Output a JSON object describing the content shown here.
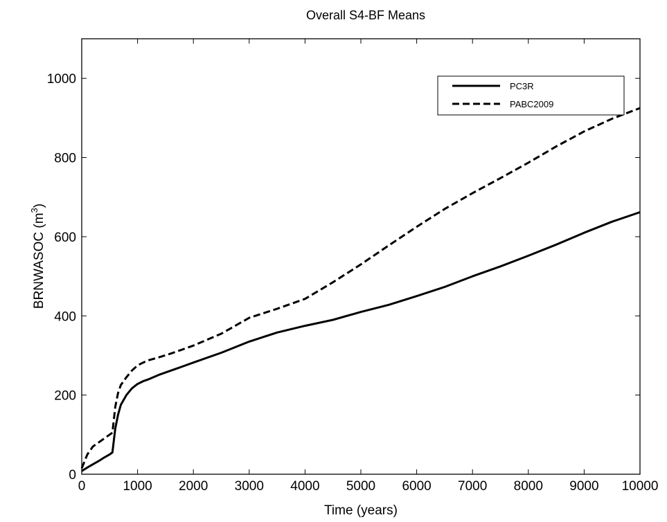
{
  "chart_data": {
    "type": "line",
    "title": "Overall S4-BF Means",
    "xlabel": "Time (years)",
    "ylabel_main": "BRNWASOC (m",
    "ylabel_sup": "3",
    "ylabel_close": ")",
    "xlim": [
      0,
      10000
    ],
    "ylim": [
      0,
      1100
    ],
    "xticks": [
      0,
      1000,
      2000,
      3000,
      4000,
      5000,
      6000,
      7000,
      8000,
      9000,
      10000
    ],
    "yticks": [
      0,
      200,
      400,
      600,
      800,
      1000
    ],
    "grid": false,
    "legend_position": "top-right",
    "series": [
      {
        "name": "PC3R",
        "style": "solid",
        "x": [
          0,
          100,
          200,
          300,
          400,
          500,
          550,
          600,
          650,
          700,
          800,
          900,
          1000,
          1100,
          1200,
          1400,
          1600,
          1800,
          2000,
          2500,
          3000,
          3500,
          4000,
          4500,
          5000,
          5500,
          6000,
          6500,
          7000,
          7500,
          8000,
          8500,
          9000,
          9500,
          10000
        ],
        "y": [
          8,
          17,
          25,
          33,
          42,
          50,
          55,
          115,
          150,
          175,
          200,
          217,
          228,
          235,
          240,
          252,
          262,
          272,
          282,
          307,
          335,
          358,
          375,
          390,
          410,
          428,
          450,
          473,
          500,
          525,
          552,
          580,
          610,
          638,
          662
        ]
      },
      {
        "name": "PABC2009",
        "style": "dashed",
        "x": [
          0,
          100,
          200,
          300,
          400,
          500,
          550,
          600,
          650,
          700,
          800,
          900,
          1000,
          1100,
          1200,
          1400,
          1600,
          1800,
          2000,
          2500,
          3000,
          3500,
          4000,
          4500,
          5000,
          5500,
          6000,
          6500,
          7000,
          7500,
          8000,
          8500,
          9000,
          9500,
          10000
        ],
        "y": [
          15,
          50,
          70,
          80,
          90,
          100,
          105,
          170,
          205,
          225,
          245,
          262,
          275,
          282,
          288,
          296,
          305,
          315,
          325,
          355,
          395,
          418,
          443,
          485,
          530,
          578,
          625,
          670,
          710,
          748,
          787,
          828,
          866,
          898,
          925
        ]
      }
    ]
  }
}
